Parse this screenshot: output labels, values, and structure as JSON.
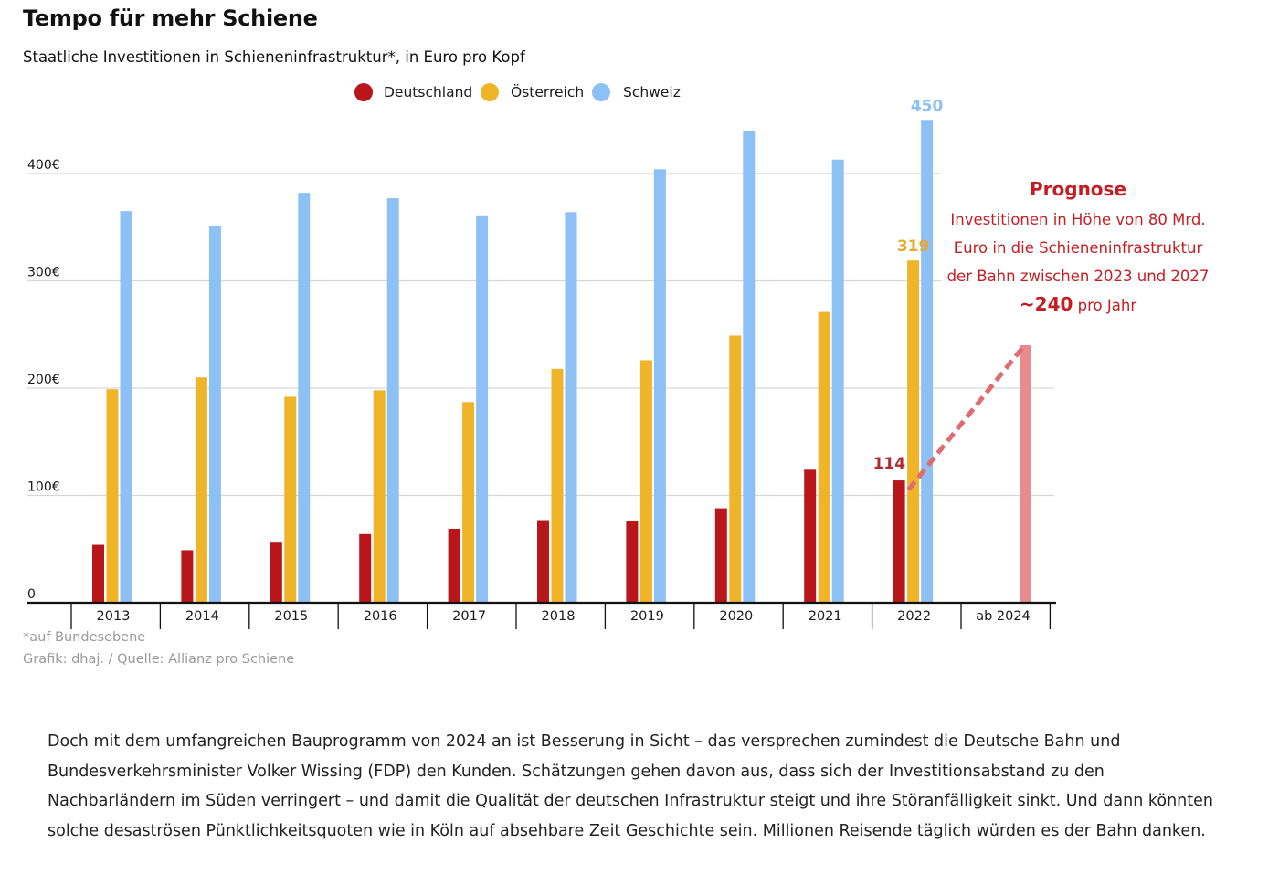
{
  "header": {
    "title": "Tempo für mehr Schiene",
    "subtitle": "Staatliche Investitionen in Schieneninfrastruktur*, in Euro pro Kopf"
  },
  "chart_data": {
    "type": "bar",
    "title": "Tempo für mehr Schiene",
    "subtitle": "Staatliche Investitionen in Schieneninfrastruktur*, in Euro pro Kopf",
    "categories": [
      "2013",
      "2014",
      "2015",
      "2016",
      "2017",
      "2018",
      "2019",
      "2020",
      "2021",
      "2022",
      "ab 2024"
    ],
    "series": [
      {
        "name": "Deutschland",
        "color": "#b8161a",
        "values": [
          54,
          49,
          56,
          64,
          69,
          77,
          76,
          88,
          124,
          114,
          null
        ]
      },
      {
        "name": "Österreich",
        "color": "#f0b429",
        "values": [
          199,
          210,
          192,
          198,
          187,
          218,
          226,
          249,
          271,
          319,
          null
        ]
      },
      {
        "name": "Schweiz",
        "color": "#8dc0f5",
        "values": [
          365,
          351,
          382,
          377,
          361,
          364,
          404,
          440,
          413,
          450,
          null
        ]
      },
      {
        "name": "",
        "color": "#e88a8e",
        "values": [
          null,
          null,
          null,
          null,
          null,
          null,
          null,
          null,
          null,
          null,
          240
        ]
      }
    ],
    "ylim": [
      0,
      450
    ],
    "yticks": [
      {
        "value": 0,
        "label": "0"
      },
      {
        "value": 100,
        "label": "100€"
      },
      {
        "value": 200,
        "label": "200€"
      },
      {
        "value": 300,
        "label": "300€"
      },
      {
        "value": 400,
        "label": "400€"
      }
    ],
    "grid": true,
    "legend": {
      "position": "top-center",
      "items": [
        "Deutschland",
        "Österreich",
        "Schweiz"
      ]
    },
    "value_labels": [
      {
        "category": "2022",
        "series": "Schweiz",
        "text": "450",
        "color": "#8dc0f5"
      },
      {
        "category": "2022",
        "series": "Österreich",
        "text": "319",
        "color": "#e8a82a"
      },
      {
        "category": "2022",
        "series": "Deutschland",
        "text": "114",
        "color": "#b02a2d"
      }
    ],
    "forecast": {
      "heading": "Prognose",
      "lines": [
        "Investitionen in Höhe von 80 Mrd.",
        "Euro in  die Schieneninfrastruktur",
        "der Bahn zwischen 2023 und 2027"
      ],
      "value_text": "~240",
      "value_suffix": " pro Jahr",
      "from": {
        "category": "2022",
        "value": 114
      },
      "to": {
        "category": "ab 2024",
        "value": 240
      },
      "color": "#c41e24",
      "line_color": "#df6b72"
    }
  },
  "footer": {
    "footnote": "*auf Bundesebene",
    "source": "Grafik: dhaj. / Quelle: Allianz pro Schiene"
  },
  "article": {
    "text": "Doch mit dem umfangreichen Bauprogramm von 2024 an ist Besserung in Sicht – das versprechen zumindest die Deutsche Bahn und Bundesverkehrsminister Volker Wissing (FDP) den Kunden. Schätzungen gehen davon aus, dass sich der Investitionsabstand zu den Nachbarländern im Süden verringert – und damit die Qualität der deutschen Infrastruktur steigt und ihre Störanfälligkeit sinkt. Und dann könnten solche desaströsen Pünktlichkeitsquoten wie in Köln auf absehbare Zeit Geschichte sein. Millionen Reisende täglich würden es der Bahn danken."
  }
}
